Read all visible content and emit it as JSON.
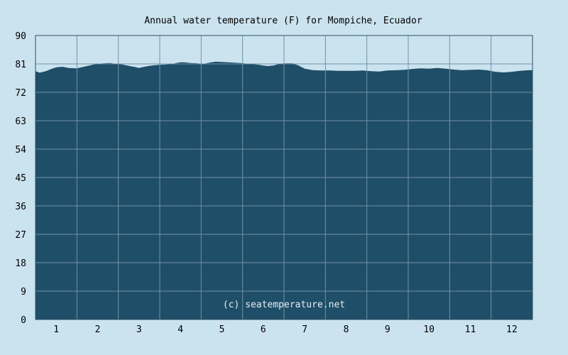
{
  "chart_data": {
    "type": "area",
    "title": "Annual water temperature (F) for Mompiche, Ecuador",
    "xlabel": "",
    "ylabel": "",
    "ylim": [
      0,
      90
    ],
    "xlim": [
      0.5,
      12.5
    ],
    "y_ticks": [
      "0",
      "9",
      "18",
      "27",
      "36",
      "45",
      "54",
      "63",
      "72",
      "81",
      "90"
    ],
    "x_ticks": [
      "1",
      "2",
      "3",
      "4",
      "5",
      "6",
      "7",
      "8",
      "9",
      "10",
      "11",
      "12"
    ],
    "grid": true,
    "legend": "none",
    "watermark": "(c) seatemperature.net",
    "series": [
      {
        "x": [
          0.5,
          0.6,
          0.75,
          0.9,
          1.0,
          1.15,
          1.3,
          1.5,
          1.7,
          1.9,
          2.0,
          2.15,
          2.3,
          2.45,
          2.6,
          2.75,
          2.9,
          3.0,
          3.1,
          3.25,
          3.4,
          3.5,
          3.65,
          3.8,
          3.9,
          4.0,
          4.1,
          4.25,
          4.4,
          4.55,
          4.7,
          4.85,
          5.0,
          5.15,
          5.3,
          5.45,
          5.6,
          5.75,
          5.9,
          6.0,
          6.1,
          6.25,
          6.4,
          6.55,
          6.7,
          6.85,
          7.0,
          7.2,
          7.4,
          7.6,
          7.8,
          8.0,
          8.2,
          8.4,
          8.6,
          8.8,
          9.0,
          9.2,
          9.4,
          9.6,
          9.8,
          10.0,
          10.2,
          10.4,
          10.6,
          10.8,
          11.0,
          11.2,
          11.4,
          11.6,
          11.8,
          12.0,
          12.2,
          12.4,
          12.5
        ],
        "values": [
          78.7,
          78.2,
          78.7,
          79.5,
          79.9,
          80.1,
          79.7,
          79.6,
          80.2,
          80.8,
          81.0,
          81.2,
          81.3,
          81.0,
          80.8,
          80.4,
          80.0,
          79.7,
          80.0,
          80.4,
          80.6,
          80.7,
          80.8,
          81.0,
          81.3,
          81.5,
          81.5,
          81.3,
          81.2,
          81.0,
          81.4,
          81.7,
          81.6,
          81.5,
          81.4,
          81.3,
          81.1,
          80.9,
          80.7,
          80.5,
          80.3,
          80.5,
          81.1,
          81.2,
          81.2,
          80.5,
          79.5,
          79.0,
          78.9,
          78.9,
          78.8,
          78.8,
          78.8,
          78.9,
          78.7,
          78.6,
          78.9,
          79.0,
          79.1,
          79.4,
          79.6,
          79.5,
          79.7,
          79.5,
          79.2,
          79.0,
          79.1,
          79.2,
          79.0,
          78.5,
          78.3,
          78.5,
          78.8,
          79.0,
          79.0
        ]
      }
    ]
  },
  "colors": {
    "background": "#cbe3ef",
    "area_fill": "#1f4e68",
    "grid": "#6f93a8",
    "axis": "#2b4f63",
    "tick_text": "#000000",
    "watermark_text": "#e6eef3"
  }
}
